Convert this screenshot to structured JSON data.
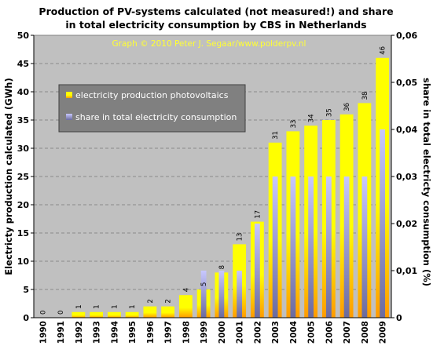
{
  "chart_data": {
    "type": "bar",
    "title_line1": "Production of PV-systems calculated (not measured!) and share",
    "title_line2": "in total electricity consumption by CBS in Netherlands",
    "watermark": "Graph © 2010 Peter J. Segaar/www.polderpv.nl",
    "ylabel_left": "Electricty production calculated (GWh)",
    "ylabel_right": "share in total electricty consumption (%)",
    "xlabel": "",
    "ylim_left": [
      0,
      50
    ],
    "yticks_left": [
      "0",
      "5",
      "10",
      "15",
      "20",
      "25",
      "30",
      "35",
      "40",
      "45",
      "50"
    ],
    "ylim_right": [
      0,
      0.06
    ],
    "yticks_right": [
      "0",
      "0,01",
      "0,02",
      "0,03",
      "0,04",
      "0,05",
      "0,06"
    ],
    "grid": true,
    "legend_position": "upper-left",
    "categories": [
      "1990",
      "1991",
      "1992",
      "1993",
      "1994",
      "1995",
      "1996",
      "1997",
      "1998",
      "1999",
      "2000",
      "2001",
      "2002",
      "2003",
      "2004",
      "2005",
      "2006",
      "2007",
      "2008",
      "2009"
    ],
    "series": [
      {
        "name": "electricity production photovoltaics",
        "axis": "left",
        "color": "#ffff00",
        "color_bottom": "#ff9a00",
        "values": [
          0,
          0,
          1,
          1,
          1,
          1,
          2,
          2,
          4,
          5,
          8,
          13,
          17,
          31,
          33,
          34,
          35,
          36,
          38,
          46
        ],
        "data_labels": [
          "0",
          "0",
          "1",
          "1",
          "1",
          "1",
          "2",
          "2",
          "4",
          "5",
          "8",
          "13",
          "17",
          "31",
          "33",
          "34",
          "35",
          "36",
          "38",
          "46"
        ]
      },
      {
        "name": "share in total electricity consumption",
        "axis": "right",
        "color": "#c8c8ff",
        "color_bottom": "#6b6b9e",
        "values": [
          0,
          0,
          0,
          0,
          0,
          0,
          0,
          0,
          0,
          0.01,
          0.01,
          0.01,
          0.02,
          0.03,
          0.03,
          0.03,
          0.03,
          0.03,
          0.03,
          0.04
        ]
      }
    ],
    "colors": {
      "plot_background": "#c0c0c0",
      "title": "#000000",
      "watermark": "#ffff33",
      "legend_background": "#808080",
      "legend_text": "#ffffff",
      "gridline": "#8a8a8a"
    }
  }
}
